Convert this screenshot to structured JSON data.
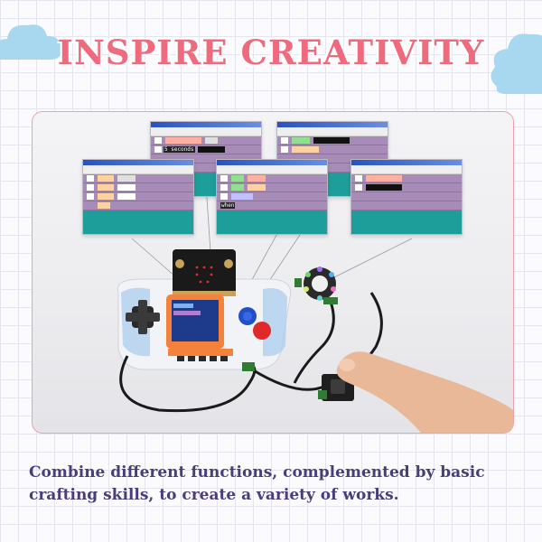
{
  "title": "INSPIRE CREATIVITY",
  "caption": "Combine different functions, complemented by basic crafting skills, to create a variety of works.",
  "colors": {
    "title": "#f06a7e",
    "caption": "#4a3d7a",
    "frame_border": "#f0a0ad",
    "cloud": "#a8d8f0",
    "window_rows": "#a88cb8",
    "window_bottom": "#1e9e9a"
  },
  "icons": [
    "cloud-left-icon",
    "cloud-right-icon"
  ],
  "windows": {
    "seconds_label": "5 seconds",
    "when_label": "when"
  }
}
